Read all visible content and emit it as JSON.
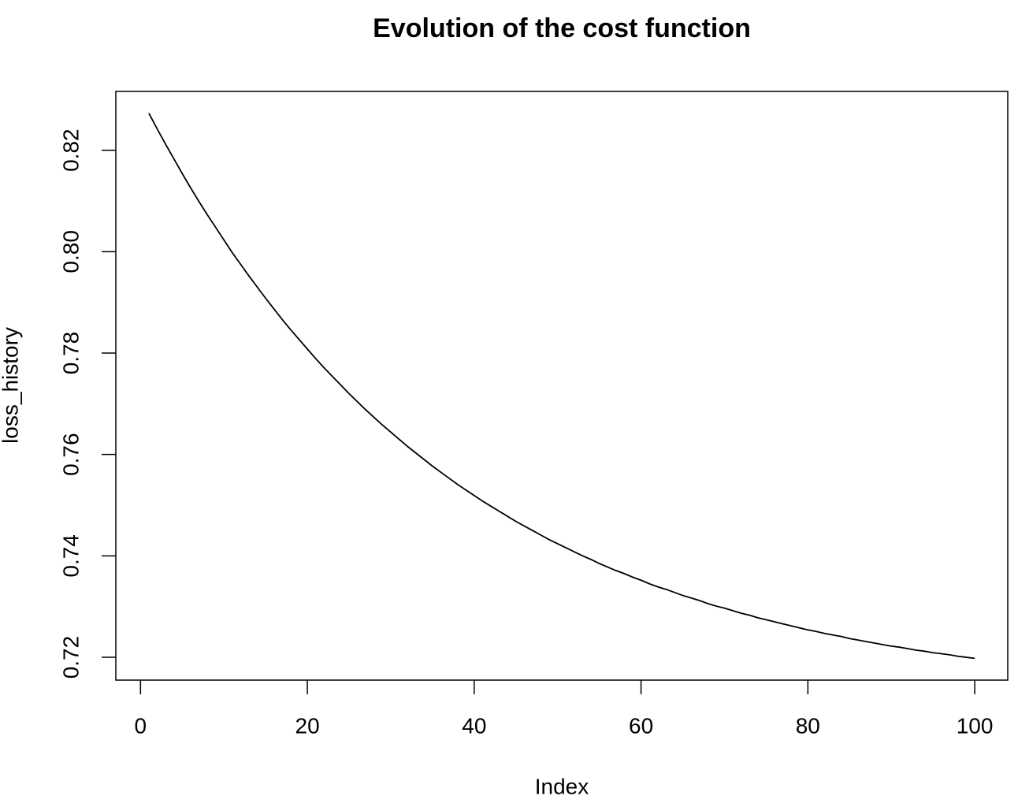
{
  "chart_data": {
    "type": "line",
    "title": "Evolution of the cost function",
    "x_label": "Index",
    "y_label": "loss_history",
    "x": [
      1,
      2,
      3,
      4,
      5,
      6,
      7,
      8,
      9,
      10,
      11,
      12,
      13,
      14,
      15,
      16,
      17,
      18,
      19,
      20,
      21,
      22,
      23,
      24,
      25,
      26,
      27,
      28,
      29,
      30,
      31,
      32,
      33,
      34,
      35,
      36,
      37,
      38,
      39,
      40,
      41,
      42,
      43,
      44,
      45,
      46,
      47,
      48,
      49,
      50,
      51,
      52,
      53,
      54,
      55,
      56,
      57,
      58,
      59,
      60,
      61,
      62,
      63,
      64,
      65,
      66,
      67,
      68,
      69,
      70,
      71,
      72,
      73,
      74,
      75,
      76,
      77,
      78,
      79,
      80,
      81,
      82,
      83,
      84,
      85,
      86,
      87,
      88,
      89,
      90,
      91,
      92,
      93,
      94,
      95,
      96,
      97,
      98,
      99,
      100
    ],
    "series": [
      {
        "name": "loss_history",
        "color": "#000000",
        "values": [
          0.8273,
          0.8242,
          0.8212,
          0.8183,
          0.8154,
          0.8126,
          0.8099,
          0.8073,
          0.8048,
          0.8023,
          0.7998,
          0.7975,
          0.7952,
          0.793,
          0.7908,
          0.7887,
          0.7866,
          0.7846,
          0.7827,
          0.7808,
          0.7789,
          0.7771,
          0.7754,
          0.7737,
          0.772,
          0.7704,
          0.7688,
          0.7673,
          0.7658,
          0.7644,
          0.763,
          0.7616,
          0.7603,
          0.759,
          0.7577,
          0.7565,
          0.7553,
          0.7541,
          0.753,
          0.7519,
          0.7508,
          0.7498,
          0.7488,
          0.7478,
          0.7468,
          0.7459,
          0.745,
          0.7441,
          0.7432,
          0.7424,
          0.7416,
          0.7408,
          0.74,
          0.7393,
          0.7385,
          0.7378,
          0.7371,
          0.7365,
          0.7358,
          0.7352,
          0.7345,
          0.7339,
          0.7334,
          0.7328,
          0.7322,
          0.7317,
          0.7312,
          0.7306,
          0.7301,
          0.7297,
          0.7292,
          0.7287,
          0.7283,
          0.7278,
          0.7274,
          0.727,
          0.7266,
          0.7262,
          0.7258,
          0.7254,
          0.7251,
          0.7247,
          0.7244,
          0.7241,
          0.7237,
          0.7234,
          0.7231,
          0.7228,
          0.7225,
          0.7222,
          0.722,
          0.7217,
          0.7214,
          0.7212,
          0.7209,
          0.7207,
          0.7205,
          0.7202,
          0.72,
          0.7198
        ]
      }
    ],
    "xlim": [
      -2.96,
      103.96
    ],
    "xticks": [
      0,
      20,
      40,
      60,
      80,
      100
    ],
    "ylim": [
      0.7155,
      0.8316
    ],
    "yticks": [
      0.72,
      0.74,
      0.76,
      0.78,
      {
        "value": 0.8,
        "label": "0.80"
      },
      0.82
    ],
    "grid": false
  }
}
